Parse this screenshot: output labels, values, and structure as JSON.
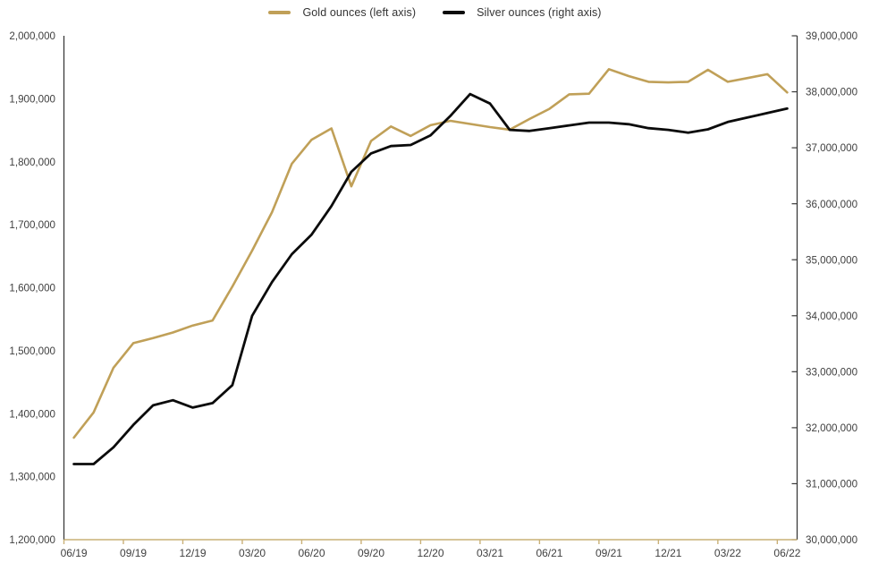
{
  "colors": {
    "gold_series": "#C0A058",
    "silver_series": "#0b0b0b",
    "x_axis_line": "#C9B077",
    "y_axis_line": "#3b3b3b",
    "label_text": "#404040"
  },
  "chart_data": {
    "type": "line",
    "title": "",
    "grid": false,
    "legend_position": "top-center",
    "x_categories": [
      "06/19",
      "07/19",
      "08/19",
      "09/19",
      "10/19",
      "11/19",
      "12/19",
      "01/20",
      "02/20",
      "03/20",
      "04/20",
      "05/20",
      "06/20",
      "07/20",
      "08/20",
      "09/20",
      "10/20",
      "11/20",
      "12/20",
      "01/21",
      "02/21",
      "03/21",
      "04/21",
      "05/21",
      "06/21",
      "07/21",
      "08/21",
      "09/21",
      "10/21",
      "11/21",
      "12/21",
      "01/22",
      "02/22",
      "03/22",
      "04/22",
      "05/22",
      "06/22"
    ],
    "x_tick_labels": [
      "06/19",
      "09/19",
      "12/19",
      "03/20",
      "06/20",
      "09/20",
      "12/20",
      "03/21",
      "06/21",
      "09/21",
      "12/21",
      "03/22",
      "06/22"
    ],
    "left_axis": {
      "min": 1200000,
      "max": 2000000,
      "step": 100000,
      "tick_labels": [
        "2,000,000",
        "1,900,000",
        "1,800,000",
        "1,700,000",
        "1,600,000",
        "1,500,000",
        "1,400,000",
        "1,300,000",
        "1,200,000"
      ]
    },
    "right_axis": {
      "min": 30000000,
      "max": 39000000,
      "step": 1000000,
      "tick_labels": [
        "39,000,000",
        "38,000,000",
        "37,000,000",
        "36,000,000",
        "35,000,000",
        "34,000,000",
        "33,000,000",
        "32,000,000",
        "31,000,000",
        "30,000,000"
      ]
    },
    "series": [
      {
        "name": "Gold ounces (left axis)",
        "axis": "left",
        "color": "#C0A058",
        "values": [
          1362000,
          1402000,
          1473000,
          1512000,
          1520000,
          1529000,
          1540000,
          1548000,
          1602000,
          1659000,
          1720000,
          1797000,
          1835000,
          1853000,
          1761000,
          1833000,
          1856000,
          1841000,
          1858000,
          1865000,
          1860000,
          1855000,
          1851000,
          1868000,
          1884000,
          1907000,
          1908000,
          1947000,
          1936000,
          1927000,
          1926000,
          1927000,
          1946000,
          1927000,
          1933000,
          1939000,
          1910000
        ]
      },
      {
        "name": "Silver ounces (right axis)",
        "axis": "right",
        "color": "#0b0b0b",
        "values": [
          31350000,
          31350000,
          31650000,
          32050000,
          32400000,
          32490000,
          32360000,
          32440000,
          32760000,
          34000000,
          34600000,
          35100000,
          35450000,
          35960000,
          36570000,
          36900000,
          37030000,
          37050000,
          37220000,
          37570000,
          37960000,
          37790000,
          37320000,
          37300000,
          37350000,
          37400000,
          37450000,
          37450000,
          37420000,
          37350000,
          37320000,
          37270000,
          37330000,
          37460000,
          37540000,
          37620000,
          37700000
        ]
      }
    ]
  }
}
